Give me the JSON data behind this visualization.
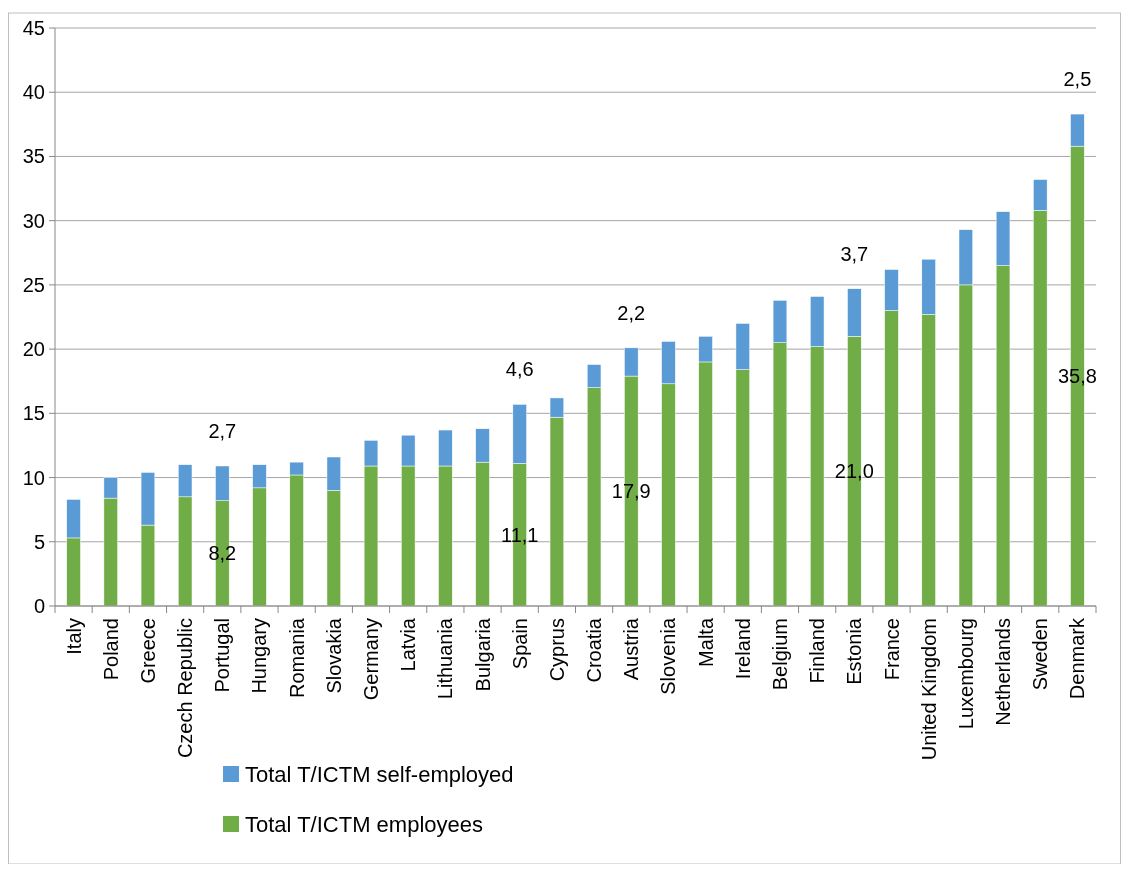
{
  "chart_data": {
    "type": "bar",
    "stacked": true,
    "categories": [
      "Italy",
      "Poland",
      "Greece",
      "Czech Republic",
      "Portugal",
      "Hungary",
      "Romania",
      "Slovakia",
      "Germany",
      "Latvia",
      "Lithuania",
      "Bulgaria",
      "Spain",
      "Cyprus",
      "Croatia",
      "Austria",
      "Slovenia",
      "Malta",
      "Ireland",
      "Belgium",
      "Finland",
      "Estonia",
      "France",
      "United Kingdom",
      "Luxembourg",
      "Netherlands",
      "Sweden",
      "Denmark"
    ],
    "series": [
      {
        "name": "Total T/ICTM employees",
        "color": "#70ad47",
        "values": [
          5.3,
          8.4,
          6.3,
          8.5,
          8.2,
          9.2,
          10.2,
          9.0,
          10.9,
          10.9,
          10.9,
          11.2,
          11.1,
          14.7,
          17.0,
          17.9,
          17.3,
          19.0,
          18.4,
          20.5,
          20.2,
          21.0,
          23.0,
          22.7,
          25.0,
          26.5,
          30.8,
          35.8
        ],
        "value_labels": [
          null,
          null,
          null,
          null,
          "8,2",
          null,
          null,
          null,
          null,
          null,
          null,
          null,
          "11,1",
          null,
          null,
          "17,9",
          null,
          null,
          null,
          null,
          null,
          "21,0",
          null,
          null,
          null,
          null,
          null,
          "35,8"
        ]
      },
      {
        "name": "Total T/ICTM self-employed",
        "color": "#5b9bd5",
        "values": [
          3.0,
          1.6,
          4.1,
          2.5,
          2.7,
          1.8,
          1.0,
          2.6,
          2.0,
          2.4,
          2.8,
          2.6,
          4.6,
          1.5,
          1.8,
          2.2,
          3.3,
          2.0,
          3.6,
          3.3,
          3.9,
          3.7,
          3.2,
          4.3,
          4.3,
          4.2,
          2.4,
          2.5
        ],
        "value_labels": [
          null,
          null,
          null,
          null,
          "2,7",
          null,
          null,
          null,
          null,
          null,
          null,
          null,
          "4,6",
          null,
          null,
          "2,2",
          null,
          null,
          null,
          null,
          null,
          "3,7",
          null,
          null,
          null,
          null,
          null,
          "2,5"
        ]
      }
    ],
    "ylim": [
      0,
      45
    ],
    "yticks": [
      0,
      5,
      10,
      15,
      20,
      25,
      30,
      35,
      40,
      45
    ],
    "grid": "y",
    "legend": "bottom left"
  }
}
